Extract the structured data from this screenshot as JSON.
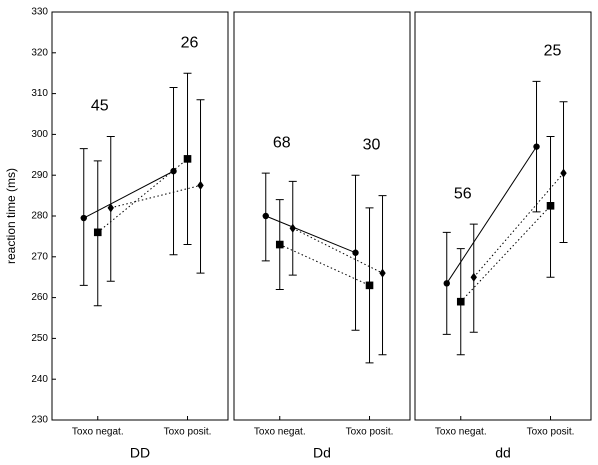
{
  "chart_data": [
    {
      "type": "line",
      "x_label": "DD",
      "y_label": "reaction time (ms)",
      "categories": [
        "Toxo negat.",
        "Toxo posit."
      ],
      "ylim": [
        230,
        330
      ],
      "yticks": [
        230,
        240,
        250,
        260,
        270,
        280,
        290,
        300,
        310,
        320,
        330
      ],
      "annotations": [
        45,
        26
      ],
      "series": [
        {
          "color": "#000000",
          "dash": "solid",
          "marker": "circle",
          "values": [
            279.5,
            291
          ],
          "error_low": [
            263,
            270.5
          ],
          "error_high": [
            296.5,
            311.5
          ]
        },
        {
          "color": "#000000",
          "dash": "dotted",
          "marker": "square",
          "values": [
            276,
            294
          ],
          "error_low": [
            258,
            273
          ],
          "error_high": [
            293.5,
            315
          ]
        },
        {
          "color": "#000000",
          "dash": "dotted",
          "marker": "diamond",
          "values": [
            282,
            287.5
          ],
          "error_low": [
            264,
            266
          ],
          "error_high": [
            299.5,
            308.5
          ]
        }
      ]
    },
    {
      "type": "line",
      "x_label": "Dd",
      "categories": [
        "Toxo negat.",
        "Toxo posit."
      ],
      "ylim": [
        230,
        330
      ],
      "annotations": [
        68,
        30
      ],
      "series": [
        {
          "color": "#000000",
          "dash": "solid",
          "marker": "circle",
          "values": [
            280,
            271
          ],
          "error_low": [
            269,
            252
          ],
          "error_high": [
            290.5,
            290
          ]
        },
        {
          "color": "#000000",
          "dash": "dotted",
          "marker": "square",
          "values": [
            273,
            263
          ],
          "error_low": [
            262,
            244
          ],
          "error_high": [
            284,
            282
          ]
        },
        {
          "color": "#000000",
          "dash": "dotted",
          "marker": "diamond",
          "values": [
            277,
            266
          ],
          "error_low": [
            265.5,
            246
          ],
          "error_high": [
            288.5,
            285
          ]
        }
      ]
    },
    {
      "type": "line",
      "x_label": "dd",
      "categories": [
        "Toxo negat.",
        "Toxo posit."
      ],
      "ylim": [
        230,
        330
      ],
      "annotations": [
        56,
        25
      ],
      "series": [
        {
          "color": "#000000",
          "dash": "solid",
          "marker": "circle",
          "values": [
            263.5,
            297
          ],
          "error_low": [
            251,
            281
          ],
          "error_high": [
            276,
            313
          ]
        },
        {
          "color": "#000000",
          "dash": "dotted",
          "marker": "square",
          "values": [
            259,
            282.5
          ],
          "error_low": [
            246,
            265
          ],
          "error_high": [
            272,
            299.5
          ]
        },
        {
          "color": "#000000",
          "dash": "dotted",
          "marker": "diamond",
          "values": [
            265,
            290.5
          ],
          "error_low": [
            251.5,
            273.5
          ],
          "error_high": [
            278,
            308
          ]
        }
      ]
    }
  ]
}
